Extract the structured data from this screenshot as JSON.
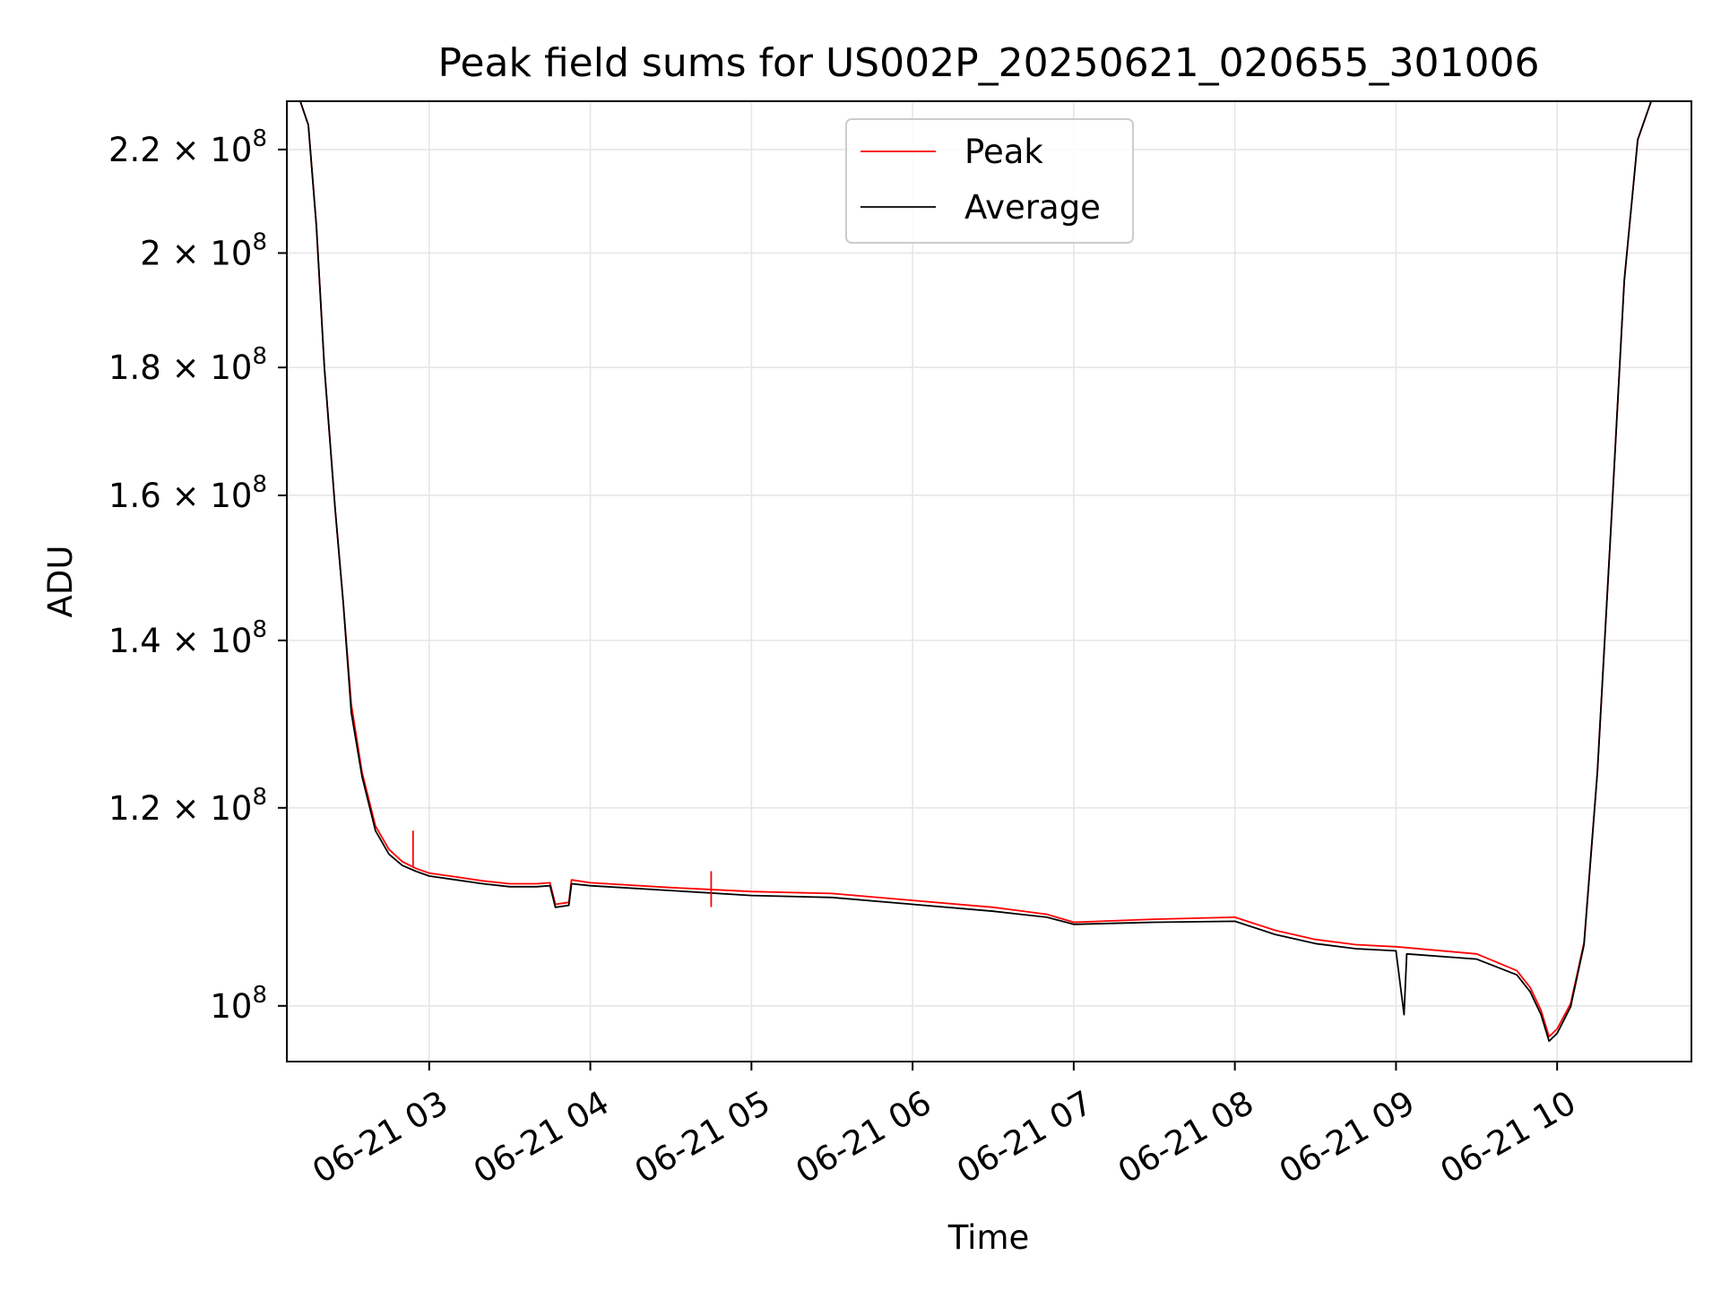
{
  "chart_data": {
    "type": "line",
    "title": "Peak field sums for US002P_20250621_020655_301006",
    "xlabel": "Time",
    "ylabel": "ADU",
    "y_scale": "log",
    "grid": true,
    "legend_placement": "upper center",
    "x_range": [
      "2025-06-21 02:07",
      "2025-06-21 10:50"
    ],
    "ylim": [
      95000000,
      230000000
    ],
    "x_ticks": [
      {
        "value": "2025-06-21 03:00",
        "label": "06-21 03"
      },
      {
        "value": "2025-06-21 04:00",
        "label": "06-21 04"
      },
      {
        "value": "2025-06-21 05:00",
        "label": "06-21 05"
      },
      {
        "value": "2025-06-21 06:00",
        "label": "06-21 06"
      },
      {
        "value": "2025-06-21 07:00",
        "label": "06-21 07"
      },
      {
        "value": "2025-06-21 08:00",
        "label": "06-21 08"
      },
      {
        "value": "2025-06-21 09:00",
        "label": "06-21 09"
      },
      {
        "value": "2025-06-21 10:00",
        "label": "06-21 10"
      }
    ],
    "y_ticks": [
      {
        "value": 100000000,
        "mantissa": "",
        "exponent": "8"
      },
      {
        "value": 120000000,
        "mantissa": "1.2",
        "exponent": "8"
      },
      {
        "value": 140000000,
        "mantissa": "1.4",
        "exponent": "8"
      },
      {
        "value": 160000000,
        "mantissa": "1.6",
        "exponent": "8"
      },
      {
        "value": 180000000,
        "mantissa": "1.8",
        "exponent": "8"
      },
      {
        "value": 200000000,
        "mantissa": "2",
        "exponent": "8"
      },
      {
        "value": 220000000,
        "mantissa": "2.2",
        "exponent": "8"
      }
    ],
    "series": [
      {
        "name": "Peak",
        "color": "#ff0000",
        "points": [
          [
            "2025-06-21 02:07",
            230000000
          ],
          [
            "2025-06-21 02:12",
            230000000
          ],
          [
            "2025-06-21 02:15",
            225000000
          ],
          [
            "2025-06-21 02:18",
            205000000
          ],
          [
            "2025-06-21 02:21",
            180000000
          ],
          [
            "2025-06-21 02:25",
            158000000
          ],
          [
            "2025-06-21 02:28",
            145000000
          ],
          [
            "2025-06-21 02:31",
            132000000
          ],
          [
            "2025-06-21 02:35",
            124000000
          ],
          [
            "2025-06-21 02:40",
            118000000
          ],
          [
            "2025-06-21 02:45",
            115500000
          ],
          [
            "2025-06-21 02:50",
            114200000
          ],
          [
            "2025-06-21 02:55",
            113500000
          ],
          [
            "2025-06-21 03:00",
            113000000
          ],
          [
            "2025-06-21 03:10",
            112600000
          ],
          [
            "2025-06-21 03:20",
            112200000
          ],
          [
            "2025-06-21 03:30",
            111900000
          ],
          [
            "2025-06-21 03:40",
            111900000
          ],
          [
            "2025-06-21 03:45",
            112000000
          ],
          [
            "2025-06-21 03:47",
            109800000
          ],
          [
            "2025-06-21 03:52",
            110000000
          ],
          [
            "2025-06-21 03:53",
            112300000
          ],
          [
            "2025-06-21 04:00",
            112000000
          ],
          [
            "2025-06-21 04:30",
            111500000
          ],
          [
            "2025-06-21 05:00",
            111100000
          ],
          [
            "2025-06-21 05:30",
            110900000
          ],
          [
            "2025-06-21 06:00",
            110200000
          ],
          [
            "2025-06-21 06:30",
            109500000
          ],
          [
            "2025-06-21 06:50",
            108800000
          ],
          [
            "2025-06-21 07:00",
            108000000
          ],
          [
            "2025-06-21 07:30",
            108300000
          ],
          [
            "2025-06-21 08:00",
            108500000
          ],
          [
            "2025-06-21 08:15",
            107200000
          ],
          [
            "2025-06-21 08:30",
            106300000
          ],
          [
            "2025-06-21 08:45",
            105800000
          ],
          [
            "2025-06-21 09:00",
            105600000
          ],
          [
            "2025-06-21 09:30",
            104900000
          ],
          [
            "2025-06-21 09:45",
            103300000
          ],
          [
            "2025-06-21 09:50",
            101700000
          ],
          [
            "2025-06-21 09:54",
            99600000
          ],
          [
            "2025-06-21 09:57",
            97200000
          ],
          [
            "2025-06-21 10:00",
            97900000
          ],
          [
            "2025-06-21 10:05",
            100200000
          ],
          [
            "2025-06-21 10:10",
            106000000
          ],
          [
            "2025-06-21 10:15",
            124000000
          ],
          [
            "2025-06-21 10:20",
            155000000
          ],
          [
            "2025-06-21 10:25",
            195000000
          ],
          [
            "2025-06-21 10:30",
            222000000
          ],
          [
            "2025-06-21 10:35",
            230000000
          ],
          [
            "2025-06-21 10:50",
            230000000
          ]
        ]
      },
      {
        "name": "Average",
        "color": "#000000",
        "points": [
          [
            "2025-06-21 02:07",
            230000000
          ],
          [
            "2025-06-21 02:12",
            230000000
          ],
          [
            "2025-06-21 02:15",
            225000000
          ],
          [
            "2025-06-21 02:18",
            205000000
          ],
          [
            "2025-06-21 02:21",
            180000000
          ],
          [
            "2025-06-21 02:25",
            158000000
          ],
          [
            "2025-06-21 02:28",
            145000000
          ],
          [
            "2025-06-21 02:31",
            131000000
          ],
          [
            "2025-06-21 02:35",
            123500000
          ],
          [
            "2025-06-21 02:40",
            117500000
          ],
          [
            "2025-06-21 02:45",
            115000000
          ],
          [
            "2025-06-21 02:50",
            113800000
          ],
          [
            "2025-06-21 02:55",
            113200000
          ],
          [
            "2025-06-21 03:00",
            112700000
          ],
          [
            "2025-06-21 03:10",
            112300000
          ],
          [
            "2025-06-21 03:20",
            111900000
          ],
          [
            "2025-06-21 03:30",
            111600000
          ],
          [
            "2025-06-21 03:40",
            111600000
          ],
          [
            "2025-06-21 03:45",
            111700000
          ],
          [
            "2025-06-21 03:47",
            109500000
          ],
          [
            "2025-06-21 03:52",
            109700000
          ],
          [
            "2025-06-21 03:53",
            111900000
          ],
          [
            "2025-06-21 04:00",
            111700000
          ],
          [
            "2025-06-21 04:30",
            111200000
          ],
          [
            "2025-06-21 05:00",
            110700000
          ],
          [
            "2025-06-21 05:30",
            110500000
          ],
          [
            "2025-06-21 06:00",
            109800000
          ],
          [
            "2025-06-21 06:30",
            109100000
          ],
          [
            "2025-06-21 06:50",
            108500000
          ],
          [
            "2025-06-21 07:00",
            107800000
          ],
          [
            "2025-06-21 07:30",
            108000000
          ],
          [
            "2025-06-21 08:00",
            108100000
          ],
          [
            "2025-06-21 08:15",
            106800000
          ],
          [
            "2025-06-21 08:30",
            105900000
          ],
          [
            "2025-06-21 08:45",
            105400000
          ],
          [
            "2025-06-21 09:00",
            105200000
          ],
          [
            "2025-06-21 09:03",
            99200000
          ],
          [
            "2025-06-21 09:04",
            104900000
          ],
          [
            "2025-06-21 09:30",
            104400000
          ],
          [
            "2025-06-21 09:45",
            102900000
          ],
          [
            "2025-06-21 09:50",
            101300000
          ],
          [
            "2025-06-21 09:54",
            99200000
          ],
          [
            "2025-06-21 09:57",
            96800000
          ],
          [
            "2025-06-21 10:00",
            97500000
          ],
          [
            "2025-06-21 10:05",
            99900000
          ],
          [
            "2025-06-21 10:10",
            105800000
          ],
          [
            "2025-06-21 10:15",
            124000000
          ],
          [
            "2025-06-21 10:20",
            155000000
          ],
          [
            "2025-06-21 10:25",
            195000000
          ],
          [
            "2025-06-21 10:30",
            222000000
          ],
          [
            "2025-06-21 10:35",
            230000000
          ],
          [
            "2025-06-21 10:50",
            230000000
          ]
        ]
      }
    ],
    "annotations": [
      {
        "series": "Peak",
        "x": "2025-06-21 02:54",
        "y": 117500000
      },
      {
        "series": "Peak",
        "x": "2025-06-21 04:45",
        "y": 113200000
      }
    ]
  }
}
